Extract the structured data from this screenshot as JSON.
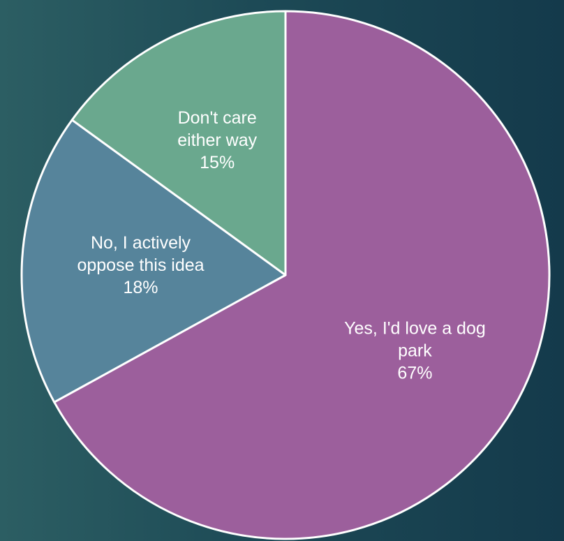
{
  "chart_data": {
    "type": "pie",
    "title": "",
    "start_angle_deg": 0,
    "direction": "clockwise",
    "legend": "none",
    "slices": [
      {
        "label_lines": [
          "Yes, I'd love a dog",
          "park"
        ],
        "percent_label": "67%",
        "value": 67,
        "color": "#9c5f9c"
      },
      {
        "label_lines": [
          "No, I actively",
          "oppose this idea"
        ],
        "percent_label": "18%",
        "value": 18,
        "color": "#56849b"
      },
      {
        "label_lines": [
          "Don't care",
          "either way"
        ],
        "percent_label": "15%",
        "value": 15,
        "color": "#6aa88e"
      }
    ],
    "slice_border_color": "#ffffff",
    "label_color": "#ffffff"
  },
  "background": {
    "gradient_start": "#2c5e63",
    "gradient_end": "#143a4b"
  }
}
